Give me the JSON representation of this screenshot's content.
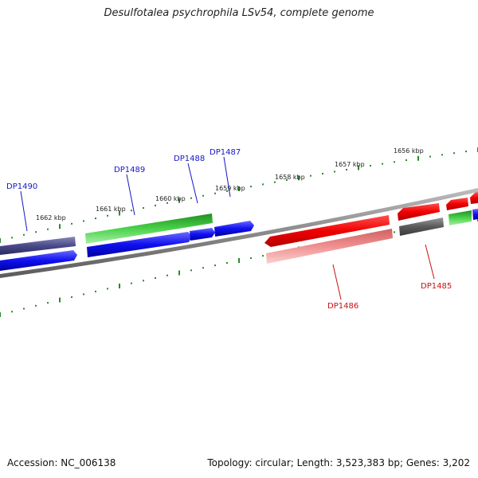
{
  "title": "Desulfotalea psychrophila LSv54, complete genome",
  "footer": {
    "accession": "Accession: NC_006138",
    "topology": "Topology: circular; Length: 3,523,383 bp; Genes: 3,202"
  },
  "colors": {
    "blue": "#0a0ae6",
    "dark_blue": "#464687",
    "green": "#3ac23a",
    "red": "#f00000",
    "pink": "#f09090",
    "gray": "#6a6a6a",
    "backbone": "#8c8c8c",
    "tick": "#2a8a2a"
  },
  "scale_labels": [
    "1662 kbp",
    "1661 kbp",
    "1660 kbp",
    "1659 kbp",
    "1658 kbp",
    "1657 kbp",
    "1656 kbp"
  ],
  "gene_labels": [
    "DP1490",
    "DP1489",
    "DP1488",
    "DP1487",
    "DP1486",
    "DP1485"
  ]
}
